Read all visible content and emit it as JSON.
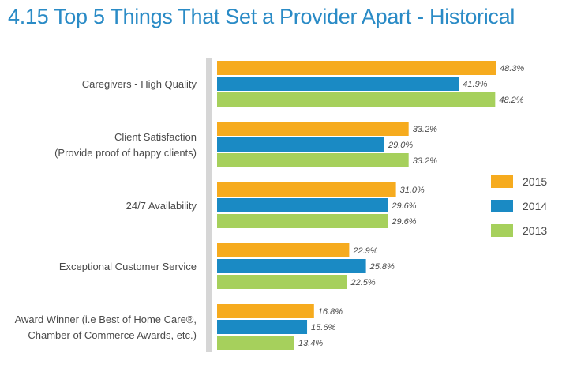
{
  "chart_data": {
    "type": "bar",
    "orientation": "horizontal",
    "title": "4.15 Top 5 Things That Set a Provider Apart - Historical",
    "categories": [
      [
        "Caregivers - High Quality"
      ],
      [
        "Client Satisfaction",
        "(Provide proof of happy clients)"
      ],
      [
        "24/7 Availability"
      ],
      [
        "Exceptional Customer Service"
      ],
      [
        "Award Winner (i.e Best of Home Care®,",
        "Chamber of Commerce Awards, etc.)"
      ]
    ],
    "series": [
      {
        "name": "2015",
        "color": "#f6ab1e",
        "values": [
          48.3,
          33.2,
          31.0,
          22.9,
          16.8
        ]
      },
      {
        "name": "2014",
        "color": "#1a8ac4",
        "values": [
          41.9,
          29.0,
          29.6,
          25.8,
          15.6
        ]
      },
      {
        "name": "2013",
        "color": "#a6d05c",
        "values": [
          48.2,
          33.2,
          29.6,
          22.5,
          13.4
        ]
      }
    ],
    "value_format": "%",
    "xlim": [
      0,
      50
    ],
    "grid": false,
    "legend_position": "right"
  }
}
